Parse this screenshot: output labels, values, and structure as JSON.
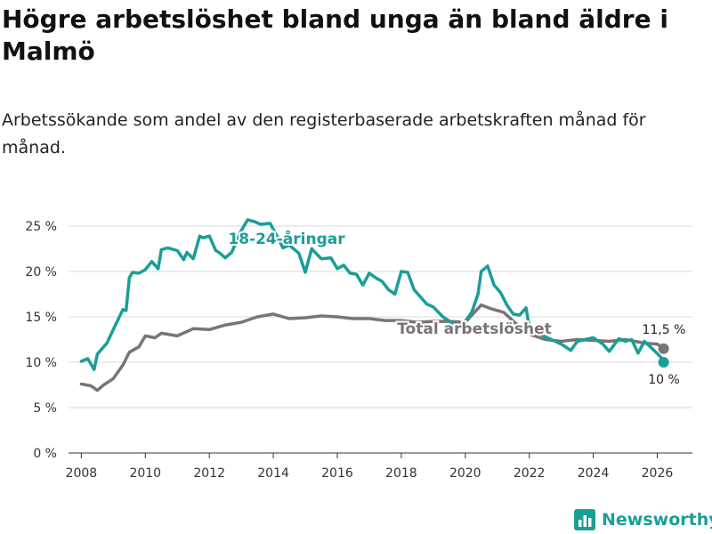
{
  "title": "Högre arbetslöshet bland unga än bland äldre i Malmö",
  "subtitle": "Arbetssökande som andel av den registerbaserade arbetskraften månad för månad.",
  "brand": {
    "name": "Newsworthy",
    "icon": "newsworthy-logo-icon",
    "color": "#1a9e98"
  },
  "chart_data": {
    "type": "line",
    "title": "Högre arbetslöshet bland unga än bland äldre i Malmö",
    "xlabel": "",
    "ylabel": "",
    "xlim": [
      2007.6,
      2027.1
    ],
    "ylim": [
      0,
      25
    ],
    "grid": true,
    "x_ticks": [
      2008,
      2010,
      2012,
      2014,
      2016,
      2018,
      2020,
      2022,
      2024,
      2026
    ],
    "y_ticks": [
      0,
      5,
      10,
      15,
      20,
      25
    ],
    "y_tick_labels": [
      "0 %",
      "5 %",
      "10 %",
      "15 %",
      "20 %",
      "25 %"
    ],
    "series": [
      {
        "name": "Total arbetslöshet",
        "label": "Total arbetslöshet",
        "color": "#7a7479",
        "end_label": "11,5 %",
        "x": [
          2008.0,
          2008.3,
          2008.5,
          2008.7,
          2009.0,
          2009.3,
          2009.5,
          2009.8,
          2010.0,
          2010.3,
          2010.5,
          2011.0,
          2011.5,
          2012.0,
          2012.5,
          2013.0,
          2013.5,
          2014.0,
          2014.5,
          2015.0,
          2015.5,
          2016.0,
          2016.5,
          2017.0,
          2017.5,
          2018.0,
          2018.5,
          2019.0,
          2019.5,
          2020.0,
          2020.5,
          2020.8,
          2021.2,
          2021.6,
          2022.0,
          2022.5,
          2023.0,
          2023.5,
          2024.0,
          2024.5,
          2025.0,
          2025.3,
          2025.6,
          2026.0,
          2026.2
        ],
        "values": [
          7.6,
          7.4,
          6.9,
          7.5,
          8.2,
          9.7,
          11.1,
          11.7,
          12.9,
          12.7,
          13.2,
          12.9,
          13.7,
          13.6,
          14.1,
          14.4,
          15.0,
          15.3,
          14.8,
          14.9,
          15.1,
          15.0,
          14.8,
          14.8,
          14.6,
          14.6,
          14.4,
          14.5,
          14.5,
          14.4,
          16.3,
          15.9,
          15.5,
          14.2,
          13.1,
          12.5,
          12.3,
          12.5,
          12.4,
          12.3,
          12.5,
          12.3,
          12.1,
          12.0,
          11.5
        ]
      },
      {
        "name": "18-24-åringar",
        "label": "18-24-åringar",
        "color": "#1a9e98",
        "end_label": "10 %",
        "x": [
          2008.0,
          2008.2,
          2008.4,
          2008.5,
          2008.8,
          2009.0,
          2009.3,
          2009.4,
          2009.5,
          2009.6,
          2009.8,
          2010.0,
          2010.2,
          2010.4,
          2010.5,
          2010.7,
          2011.0,
          2011.2,
          2011.3,
          2011.5,
          2011.7,
          2011.8,
          2012.0,
          2012.2,
          2012.3,
          2012.5,
          2012.7,
          2013.0,
          2013.2,
          2013.4,
          2013.6,
          2013.9,
          2014.1,
          2014.3,
          2014.5,
          2014.8,
          2015.0,
          2015.2,
          2015.5,
          2015.8,
          2016.0,
          2016.2,
          2016.4,
          2016.6,
          2016.8,
          2017.0,
          2017.2,
          2017.4,
          2017.6,
          2017.8,
          2018.0,
          2018.2,
          2018.4,
          2018.6,
          2018.8,
          2019.0,
          2019.3,
          2019.6,
          2019.8,
          2020.0,
          2020.2,
          2020.4,
          2020.5,
          2020.7,
          2020.9,
          2021.1,
          2021.3,
          2021.5,
          2021.7,
          2021.9,
          2022.0,
          2022.5,
          2023.0,
          2023.3,
          2023.5,
          2024.0,
          2024.3,
          2024.5,
          2024.8,
          2025.0,
          2025.2,
          2025.4,
          2025.6,
          2025.9,
          2026.1,
          2026.2
        ],
        "values": [
          10.1,
          10.4,
          9.2,
          10.9,
          12.1,
          13.6,
          15.8,
          15.7,
          19.3,
          19.9,
          19.8,
          20.2,
          21.1,
          20.3,
          22.4,
          22.6,
          22.3,
          21.3,
          22.1,
          21.4,
          23.9,
          23.7,
          23.9,
          22.3,
          22.1,
          21.5,
          22.1,
          24.5,
          25.7,
          25.5,
          25.2,
          25.3,
          24.0,
          22.6,
          22.9,
          22.0,
          19.9,
          22.5,
          21.4,
          21.5,
          20.3,
          20.7,
          19.8,
          19.7,
          18.5,
          19.8,
          19.3,
          18.9,
          18.0,
          17.5,
          20.0,
          19.9,
          18.0,
          17.2,
          16.4,
          16.1,
          15.0,
          14.3,
          14.0,
          14.5,
          15.5,
          17.5,
          20.0,
          20.6,
          18.5,
          17.7,
          16.3,
          15.3,
          15.2,
          16.0,
          13.8,
          12.8,
          12.0,
          11.3,
          12.3,
          12.7,
          12.0,
          11.2,
          12.6,
          12.3,
          12.5,
          11.0,
          12.3,
          11.3,
          10.6,
          10.0
        ]
      }
    ]
  }
}
